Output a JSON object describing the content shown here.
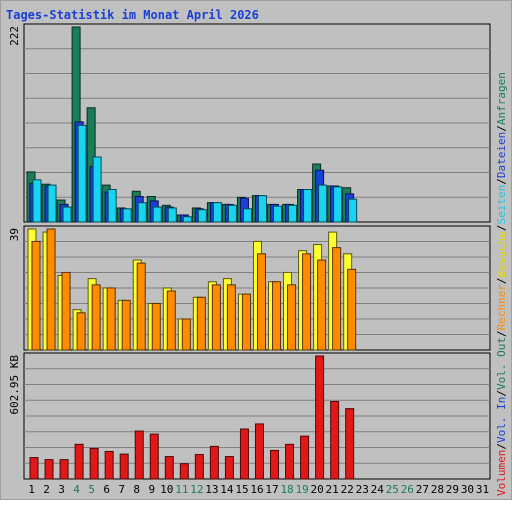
{
  "chart_data": {
    "type": "bar",
    "title": "Tages-Statistik im Monat April 2026",
    "categories": [
      "1",
      "2",
      "3",
      "4",
      "5",
      "6",
      "7",
      "8",
      "9",
      "10",
      "11",
      "12",
      "13",
      "14",
      "15",
      "16",
      "17",
      "18",
      "19",
      "20",
      "21",
      "22",
      "23",
      "24",
      "25",
      "26",
      "27",
      "28",
      "29",
      "30",
      "31"
    ],
    "weekend_days": [
      "4",
      "5",
      "11",
      "12",
      "18",
      "19",
      "25",
      "26"
    ],
    "grid": true,
    "legend_placement": "right (vertical)",
    "panels": [
      {
        "id": "top",
        "scale_label": "222",
        "ylim": [
          0,
          222
        ],
        "series": [
          {
            "name": "Anfragen",
            "color": "#1b7c5a",
            "values": [
              57,
              43,
              25,
              222,
              130,
              42,
              16,
              35,
              29,
              19,
              8,
              16,
              22,
              20,
              28,
              30,
              20,
              20,
              37,
              66,
              41,
              39,
              0,
              0,
              0,
              0,
              0,
              0,
              0,
              0,
              0
            ]
          },
          {
            "name": "Dateien",
            "color": "#1a3fd9",
            "values": [
              44,
              41,
              20,
              114,
              63,
              34,
              15,
              29,
              24,
              17,
              8,
              15,
              22,
              20,
              27,
              30,
              20,
              20,
              37,
              59,
              41,
              32,
              0,
              0,
              0,
              0,
              0,
              0,
              0,
              0,
              0
            ]
          },
          {
            "name": "Seiten",
            "color": "#18d4f0",
            "values": [
              48,
              42,
              17,
              110,
              74,
              37,
              15,
              22,
              17,
              16,
              6,
              14,
              22,
              19,
              15,
              30,
              18,
              19,
              37,
              42,
              40,
              26,
              0,
              0,
              0,
              0,
              0,
              0,
              0,
              0,
              0
            ]
          }
        ]
      },
      {
        "id": "middle",
        "scale_label": "39",
        "ylim": [
          0,
          39
        ],
        "series": [
          {
            "name": "Besuche",
            "color": "#ffff30",
            "values": [
              39,
              38,
              24,
              13,
              23,
              20,
              16,
              29,
              15,
              20,
              10,
              17,
              22,
              23,
              18,
              35,
              22,
              25,
              32,
              34,
              38,
              31,
              0,
              0,
              0,
              0,
              0,
              0,
              0,
              0,
              0
            ]
          },
          {
            "name": "Rechner",
            "color": "#ff8c00",
            "values": [
              35,
              39,
              25,
              12,
              21,
              20,
              16,
              28,
              15,
              19,
              10,
              17,
              21,
              21,
              18,
              31,
              22,
              21,
              31,
              29,
              33,
              26,
              0,
              0,
              0,
              0,
              0,
              0,
              0,
              0,
              0
            ]
          }
        ]
      },
      {
        "id": "bottom",
        "scale_label": "602.95 KB",
        "ylim": [
          0,
          602.95
        ],
        "series": [
          {
            "name": "Volumen",
            "color": "#e01818",
            "values": [
              105,
              95,
              95,
              170,
              150,
              135,
              122,
              235,
              220,
              110,
              75,
              120,
              160,
              110,
              245,
              270,
              140,
              170,
              210,
              602.95,
              380,
              345,
              0,
              0,
              0,
              0,
              0,
              0,
              0,
              0,
              0
            ]
          }
        ]
      }
    ],
    "legend": [
      {
        "label": "Volumen",
        "color": "#e01818"
      },
      {
        "label": "/",
        "color": "#000000"
      },
      {
        "label": "Vol. In",
        "color": "#1a3fd9"
      },
      {
        "label": "/",
        "color": "#000000"
      },
      {
        "label": "Vol. Out",
        "color": "#1b7c5a"
      },
      {
        "label": "/",
        "color": "#000000"
      },
      {
        "label": "Rechner",
        "color": "#ff8c00"
      },
      {
        "label": "/",
        "color": "#000000"
      },
      {
        "label": "Besuche",
        "color": "#e8d800"
      },
      {
        "label": "/",
        "color": "#000000"
      },
      {
        "label": "Seiten",
        "color": "#18c8e8"
      },
      {
        "label": "/",
        "color": "#000000"
      },
      {
        "label": "Dateien",
        "color": "#1a3fd9"
      },
      {
        "label": "/",
        "color": "#000000"
      },
      {
        "label": "Anfragen",
        "color": "#1b7c5a"
      }
    ],
    "colors": {
      "background": "#c0c0c0",
      "border": "#a0a0a0",
      "title": "#1a3fd9",
      "weekday_label": "#000000",
      "weekend_label": "#1b7c5a"
    }
  }
}
